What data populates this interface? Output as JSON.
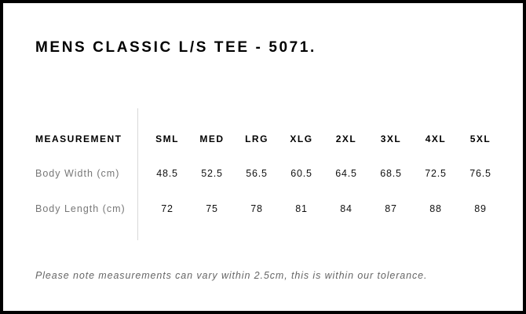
{
  "title": "MENS CLASSIC L/S TEE - 5071.",
  "table": {
    "header_label": "MEASUREMENT",
    "sizes": [
      "SML",
      "MED",
      "LRG",
      "XLG",
      "2XL",
      "3XL",
      "4XL",
      "5XL"
    ],
    "rows": [
      {
        "label": "Body Width (cm)",
        "values": [
          "48.5",
          "52.5",
          "56.5",
          "60.5",
          "64.5",
          "68.5",
          "72.5",
          "76.5"
        ]
      },
      {
        "label": "Body Length (cm)",
        "values": [
          "72",
          "75",
          "78",
          "81",
          "84",
          "87",
          "88",
          "89"
        ]
      }
    ]
  },
  "note": "Please note measurements can vary within 2.5cm, this is within our tolerance.",
  "colors": {
    "border": "#000000",
    "label": "#777777",
    "divider": "#d8d8d8"
  }
}
